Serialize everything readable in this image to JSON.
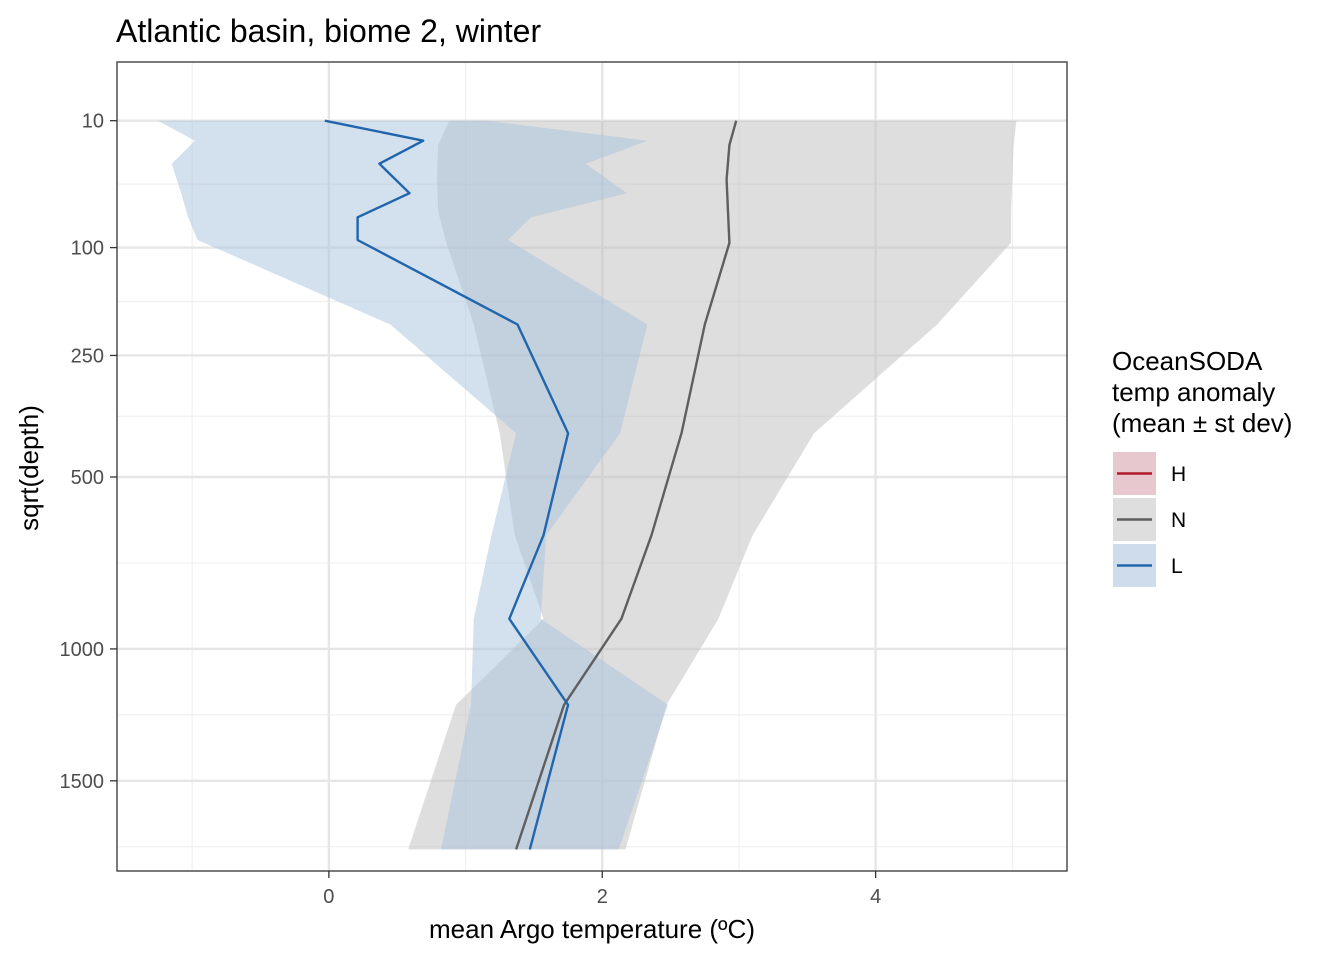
{
  "chart_data": {
    "type": "line",
    "title": "Atlantic basin, biome 2, winter",
    "xlabel": "mean Argo temperature (ºC)",
    "ylabel": "sqrt(depth)",
    "xlim": [
      -1.55,
      5.4
    ],
    "ylim": [
      1900,
      0
    ],
    "y_scale": "sqrt",
    "y_reversed": true,
    "grid": true,
    "x_ticks": [
      0,
      2,
      4
    ],
    "y_ticks": [
      10,
      100,
      250,
      500,
      1000,
      1500
    ],
    "legend": {
      "title_lines": [
        "OceanSODA",
        "temp anomaly",
        "(mean ± st dev)"
      ],
      "placement": "right",
      "entries": [
        {
          "label": "H",
          "line_color": "#b2182b",
          "fill_color": "#e6c8ce"
        },
        {
          "label": "N",
          "line_color": "#5f5f5f",
          "fill_color": "#dedede"
        },
        {
          "label": "L",
          "line_color": "#2166ac",
          "fill_color": "#cfdceb"
        }
      ]
    },
    "series": [
      {
        "name": "N",
        "line_color": "#5f5f5f",
        "fill_color": "#bdbdbd",
        "fill_opacity": 0.5,
        "points": [
          {
            "depth": 10,
            "mean": 2.98,
            "lo": 0.88,
            "hi": 5.03
          },
          {
            "depth": 20,
            "mean": 2.93,
            "lo": 0.8,
            "hi": 5.01
          },
          {
            "depth": 40,
            "mean": 2.91,
            "lo": 0.79,
            "hi": 5.0
          },
          {
            "depth": 65,
            "mean": 2.92,
            "lo": 0.8,
            "hi": 4.99
          },
          {
            "depth": 95,
            "mean": 2.93,
            "lo": 0.86,
            "hi": 4.99
          },
          {
            "depth": 200,
            "mean": 2.75,
            "lo": 1.06,
            "hi": 4.45
          },
          {
            "depth": 400,
            "mean": 2.58,
            "lo": 1.25,
            "hi": 3.55
          },
          {
            "depth": 650,
            "mean": 2.36,
            "lo": 1.36,
            "hi": 3.1
          },
          {
            "depth": 900,
            "mean": 2.14,
            "lo": 1.57,
            "hi": 2.85
          },
          {
            "depth": 1200,
            "mean": 1.72,
            "lo": 0.93,
            "hi": 2.47
          },
          {
            "depth": 1800,
            "mean": 1.37,
            "lo": 0.58,
            "hi": 2.17
          }
        ]
      },
      {
        "name": "L",
        "line_color": "#2166ac",
        "fill_color": "#a8c2de",
        "fill_opacity": 0.5,
        "points": [
          {
            "depth": 10,
            "mean": -0.03,
            "lo": -1.25,
            "hi": 1.15
          },
          {
            "depth": 18,
            "mean": 0.69,
            "lo": -0.98,
            "hi": 2.33
          },
          {
            "depth": 30,
            "mean": 0.37,
            "lo": -1.15,
            "hi": 1.88
          },
          {
            "depth": 50,
            "mean": 0.59,
            "lo": -1.08,
            "hi": 2.18
          },
          {
            "depth": 70,
            "mean": 0.21,
            "lo": -1.03,
            "hi": 1.48
          },
          {
            "depth": 92,
            "mean": 0.21,
            "lo": -0.96,
            "hi": 1.31
          },
          {
            "depth": 200,
            "mean": 1.38,
            "lo": 0.45,
            "hi": 2.33
          },
          {
            "depth": 400,
            "mean": 1.75,
            "lo": 1.37,
            "hi": 2.13
          },
          {
            "depth": 650,
            "mean": 1.57,
            "lo": 1.19,
            "hi": 1.59
          },
          {
            "depth": 900,
            "mean": 1.32,
            "lo": 1.06,
            "hi": 1.55
          },
          {
            "depth": 1200,
            "mean": 1.75,
            "lo": 1.04,
            "hi": 2.48
          },
          {
            "depth": 1800,
            "mean": 1.47,
            "lo": 0.82,
            "hi": 2.12
          }
        ]
      }
    ]
  }
}
